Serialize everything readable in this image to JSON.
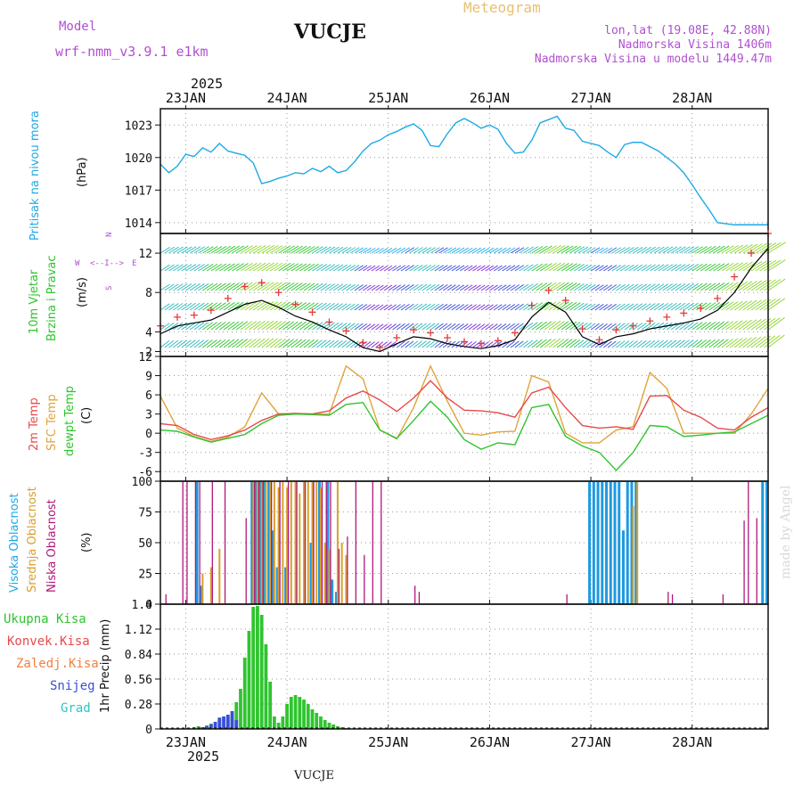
{
  "header": {
    "model_label": "Model",
    "model_name": "wrf-nmm_v3.9.1  e1km",
    "station": "VUCJE",
    "product": "Meteogram",
    "coords": "lon,lat (19.08E, 42.88N)",
    "elevation": "Nadmorska Visina 1406m",
    "model_elevation": "Nadmorska Visina u modelu 1449.47m",
    "year_top": "2025",
    "year_bottom": "2025",
    "footer_station": "VUCJE",
    "watermark": "made by Angel"
  },
  "colors": {
    "pressure": "#1ea9e6",
    "wind_speed": "#000000",
    "wind_gust": "#e53a3a",
    "temp2m": "#e84a4a",
    "sfc_temp": "#e0a43a",
    "dewpt": "#2fc42f",
    "cloud_high": "#1e9ae0",
    "cloud_mid": "#d8a030",
    "cloud_low": "#b0187a",
    "precip_total": "#2fc42f",
    "precip_snow": "#3a4ed8",
    "precip_conv": "#e84a4a",
    "purple_text": "#b050d0",
    "orange_text": "#e8b040"
  },
  "chart_data": [
    {
      "type": "line",
      "panel": "pressure",
      "label": "Pritisak na nivou mora",
      "unit": "(hPa)",
      "x_tick_labels": [
        "23JAN",
        "24JAN",
        "25JAN",
        "26JAN",
        "27JAN",
        "28JAN"
      ],
      "x_range_hours": [
        0,
        144
      ],
      "ylim": [
        1013,
        1024.5
      ],
      "yticks": [
        1014,
        1017,
        1020,
        1023
      ],
      "grid": true,
      "series": [
        {
          "x": [
            0,
            2,
            4,
            6,
            8,
            10,
            12,
            14,
            16,
            18,
            20,
            22,
            24,
            26,
            28,
            30,
            32,
            34,
            36,
            38,
            40,
            42,
            44,
            46,
            48,
            50,
            52,
            54,
            56,
            58,
            60,
            62,
            64,
            66,
            68,
            70,
            72,
            74,
            76,
            78,
            80,
            82,
            84,
            86,
            88,
            90,
            92,
            94,
            96,
            98,
            100,
            102,
            104,
            106,
            108,
            110,
            112,
            114,
            116,
            118,
            120,
            122,
            124,
            126,
            128,
            130,
            132,
            134,
            136,
            138,
            140,
            142,
            144
          ],
          "values": [
            1019.4,
            1018.6,
            1019.2,
            1020.3,
            1020.1,
            1020.9,
            1020.5,
            1021.3,
            1020.6,
            1020.4,
            1020.2,
            1019.5,
            1017.6,
            1017.8,
            1018.1,
            1018.3,
            1018.6,
            1018.5,
            1019.0,
            1018.7,
            1019.2,
            1018.6,
            1018.8,
            1019.6,
            1020.6,
            1021.3,
            1021.6,
            1022.1,
            1022.4,
            1022.8,
            1023.1,
            1022.5,
            1021.1,
            1021.0,
            1022.2,
            1023.2,
            1023.6,
            1023.2,
            1022.7,
            1023.0,
            1022.6,
            1021.3,
            1020.4,
            1020.5,
            1021.6,
            1023.2,
            1023.5,
            1023.8,
            1022.7,
            1022.5,
            1021.5,
            1021.3,
            1021.1,
            1020.5,
            1020.0,
            1021.2,
            1021.4,
            1021.4,
            1021.0,
            1020.6,
            1020.0,
            1019.4,
            1018.6,
            1017.5,
            1016.3,
            1015.2,
            1014.0,
            1013.9,
            1013.8,
            1013.8,
            1013.8,
            1013.8,
            1013.8
          ]
        }
      ]
    },
    {
      "type": "line",
      "panel": "wind",
      "labels": [
        "10m Vjetar",
        "Brzina i Pravac"
      ],
      "unit": "(m/s)",
      "compass": [
        "W",
        "<--I-->",
        "E",
        "S",
        "N"
      ],
      "ylim": [
        1.5,
        14
      ],
      "yticks": [
        2,
        4,
        8,
        12
      ],
      "grid": true,
      "series": [
        {
          "name": "speed",
          "x": [
            0,
            4,
            8,
            12,
            16,
            20,
            24,
            28,
            32,
            36,
            40,
            44,
            48,
            52,
            56,
            60,
            64,
            68,
            72,
            76,
            80,
            84,
            88,
            92,
            96,
            100,
            104,
            108,
            112,
            116,
            120,
            124,
            128,
            132,
            136,
            140,
            144
          ],
          "values": [
            3.8,
            4.6,
            4.9,
            5.2,
            6.0,
            6.8,
            7.2,
            6.5,
            5.6,
            5.0,
            4.2,
            3.5,
            2.4,
            2.0,
            2.8,
            3.5,
            3.3,
            2.8,
            2.5,
            2.3,
            2.6,
            3.2,
            5.5,
            7.0,
            6.0,
            3.5,
            2.7,
            3.5,
            3.8,
            4.3,
            4.6,
            4.9,
            5.3,
            6.2,
            8.0,
            10.5,
            12.5
          ]
        },
        {
          "name": "gust",
          "x": [
            0,
            4,
            8,
            12,
            16,
            20,
            24,
            28,
            32,
            36,
            40,
            44,
            48,
            52,
            56,
            60,
            64,
            68,
            72,
            76,
            80,
            84,
            88,
            92,
            96,
            100,
            104,
            108,
            112,
            116,
            120,
            124,
            128,
            132,
            136,
            140,
            144
          ],
          "values": [
            4.6,
            5.5,
            5.7,
            6.2,
            7.4,
            8.6,
            9.0,
            8.0,
            6.8,
            6.0,
            5.0,
            4.1,
            2.9,
            2.4,
            3.4,
            4.2,
            3.9,
            3.4,
            3.0,
            2.8,
            3.1,
            3.9,
            6.7,
            8.2,
            7.2,
            4.3,
            3.2,
            4.2,
            4.6,
            5.1,
            5.5,
            5.9,
            6.4,
            7.4,
            9.6,
            12.0,
            14.0
          ]
        }
      ]
    },
    {
      "type": "line",
      "panel": "temperature",
      "labels": [
        "2m Temp",
        "SFC Temp",
        "dewpt Temp"
      ],
      "unit": "(C)",
      "ylim": [
        -7.5,
        12
      ],
      "yticks": [
        -6,
        -3,
        0,
        3,
        6,
        9,
        12
      ],
      "grid": true,
      "series": [
        {
          "name": "2m Temp",
          "x": [
            0,
            4,
            8,
            12,
            16,
            20,
            24,
            28,
            32,
            36,
            40,
            44,
            48,
            52,
            56,
            60,
            64,
            68,
            72,
            76,
            80,
            84,
            88,
            92,
            96,
            100,
            104,
            108,
            112,
            116,
            120,
            124,
            128,
            132,
            136,
            140,
            144
          ],
          "values": [
            1.5,
            1.2,
            -0.2,
            -1.0,
            -0.4,
            0.5,
            2.0,
            3.0,
            3.1,
            3.0,
            3.5,
            5.5,
            6.6,
            5.2,
            3.4,
            5.5,
            8.2,
            5.5,
            3.6,
            3.5,
            3.2,
            2.5,
            6.3,
            7.2,
            4.0,
            1.2,
            0.8,
            1.0,
            0.6,
            5.8,
            5.9,
            3.6,
            2.5,
            0.8,
            0.5,
            2.5,
            4.0
          ]
        },
        {
          "name": "SFC Temp",
          "x": [
            0,
            4,
            8,
            12,
            16,
            20,
            24,
            28,
            32,
            36,
            40,
            44,
            48,
            52,
            56,
            60,
            64,
            68,
            72,
            76,
            80,
            84,
            88,
            92,
            96,
            100,
            104,
            108,
            112,
            116,
            120,
            124,
            128,
            132,
            136,
            140,
            144
          ],
          "values": [
            5.8,
            0.8,
            -0.5,
            -1.3,
            -0.6,
            1.0,
            6.3,
            3.0,
            3.1,
            3.0,
            3.0,
            10.5,
            8.5,
            0.5,
            -0.9,
            4.0,
            10.5,
            5.0,
            0.0,
            -0.3,
            0.2,
            0.3,
            9.0,
            8.0,
            0.0,
            -1.5,
            -1.5,
            0.5,
            1.0,
            9.5,
            7.0,
            0.0,
            0.0,
            0.0,
            0.0,
            3.0,
            7.0
          ]
        },
        {
          "name": "dewpt Temp",
          "x": [
            0,
            4,
            8,
            12,
            16,
            20,
            24,
            28,
            32,
            36,
            40,
            44,
            48,
            52,
            56,
            60,
            64,
            68,
            72,
            76,
            80,
            84,
            88,
            92,
            96,
            100,
            104,
            108,
            112,
            116,
            120,
            124,
            128,
            132,
            136,
            140,
            144
          ],
          "values": [
            0.5,
            0.3,
            -0.6,
            -1.4,
            -0.8,
            -0.2,
            1.5,
            2.8,
            3.0,
            2.9,
            2.8,
            4.5,
            4.8,
            0.5,
            -0.8,
            2.0,
            5.0,
            2.5,
            -1.0,
            -2.5,
            -1.5,
            -1.8,
            4.0,
            4.5,
            -0.5,
            -2.0,
            -3.0,
            -5.8,
            -3.0,
            1.2,
            1.0,
            -0.5,
            -0.3,
            0.0,
            0.2,
            1.5,
            2.8
          ]
        }
      ]
    },
    {
      "type": "bar",
      "panel": "clouds",
      "labels": [
        "Visoka Oblacnost",
        "Srednja Oblacnost",
        "Niska Oblacnost"
      ],
      "unit": "(%)",
      "ylim": [
        0,
        100
      ],
      "yticks": [
        0,
        25,
        50,
        75,
        100
      ],
      "grid": true,
      "series": [
        {
          "name": "Visoka Oblacnost",
          "x": [
            9,
            10,
            22,
            23,
            24,
            25,
            26,
            27,
            28,
            30,
            36,
            38,
            40,
            41,
            42,
            102,
            103,
            104,
            105,
            106,
            107,
            108,
            109,
            110,
            111,
            112,
            113,
            143,
            144
          ],
          "values": [
            100,
            15,
            100,
            100,
            100,
            100,
            100,
            60,
            30,
            30,
            50,
            100,
            100,
            20,
            10,
            100,
            100,
            100,
            100,
            100,
            100,
            100,
            100,
            60,
            100,
            100,
            100,
            100,
            100
          ]
        },
        {
          "name": "Srednja Oblacnost",
          "x": [
            10,
            12,
            14,
            22,
            23,
            24,
            25,
            26,
            27,
            28,
            29,
            30,
            31,
            32,
            33,
            34,
            35,
            36,
            37,
            38,
            39,
            40,
            42,
            43,
            44,
            112,
            113
          ],
          "values": [
            25,
            30,
            45,
            100,
            100,
            100,
            100,
            100,
            100,
            95,
            100,
            95,
            100,
            100,
            90,
            100,
            100,
            100,
            100,
            95,
            50,
            45,
            100,
            50,
            40,
            80,
            100
          ]
        },
        {
          "name": "Niska Oblacnost",
          "x": [
            1,
            5,
            6,
            8,
            9,
            12,
            15,
            20,
            22,
            23,
            24,
            26,
            28,
            30,
            32,
            34,
            36,
            38,
            39,
            40,
            42,
            44,
            46,
            48,
            50,
            52,
            60,
            61,
            96,
            120,
            121,
            133,
            138,
            139,
            141
          ],
          "values": [
            8,
            100,
            100,
            100,
            100,
            100,
            100,
            70,
            100,
            100,
            100,
            100,
            100,
            100,
            100,
            100,
            100,
            100,
            100,
            100,
            45,
            55,
            100,
            40,
            100,
            100,
            15,
            10,
            8,
            10,
            8,
            8,
            68,
            100,
            70
          ]
        }
      ]
    },
    {
      "type": "bar",
      "panel": "precip",
      "legend": [
        "Ukupna Kisa",
        "Konvek.Kisa",
        "Zaledj.Kisa",
        "Snijeg",
        "Grad"
      ],
      "unit": "1hr Precip (mm)",
      "ylim": [
        0,
        1.4
      ],
      "yticks": [
        0,
        0.28,
        0.56,
        0.84,
        1.12,
        1.4
      ],
      "grid": true,
      "series": [
        {
          "name": "Ukupna Kisa",
          "x": [
            8,
            9,
            10,
            11,
            12,
            14,
            16,
            17,
            18,
            19,
            20,
            21,
            22,
            23,
            24,
            25,
            26,
            27,
            28,
            29,
            30,
            31,
            32,
            33,
            34,
            35,
            36,
            37,
            38,
            39,
            40,
            41,
            42,
            43,
            44
          ],
          "values": [
            0.02,
            0.03,
            0.02,
            0.04,
            0.06,
            0.13,
            0.14,
            0.15,
            0.3,
            0.45,
            0.8,
            1.1,
            1.37,
            1.38,
            1.28,
            0.95,
            0.53,
            0.14,
            0.07,
            0.14,
            0.28,
            0.36,
            0.38,
            0.36,
            0.33,
            0.28,
            0.22,
            0.18,
            0.14,
            0.1,
            0.07,
            0.05,
            0.03,
            0.02,
            0.01
          ]
        },
        {
          "name": "Snijeg",
          "x": [
            10,
            11,
            12,
            13,
            14,
            15,
            16,
            17,
            18
          ],
          "values": [
            0.02,
            0.03,
            0.05,
            0.08,
            0.12,
            0.14,
            0.16,
            0.2,
            0.1
          ]
        }
      ]
    }
  ]
}
